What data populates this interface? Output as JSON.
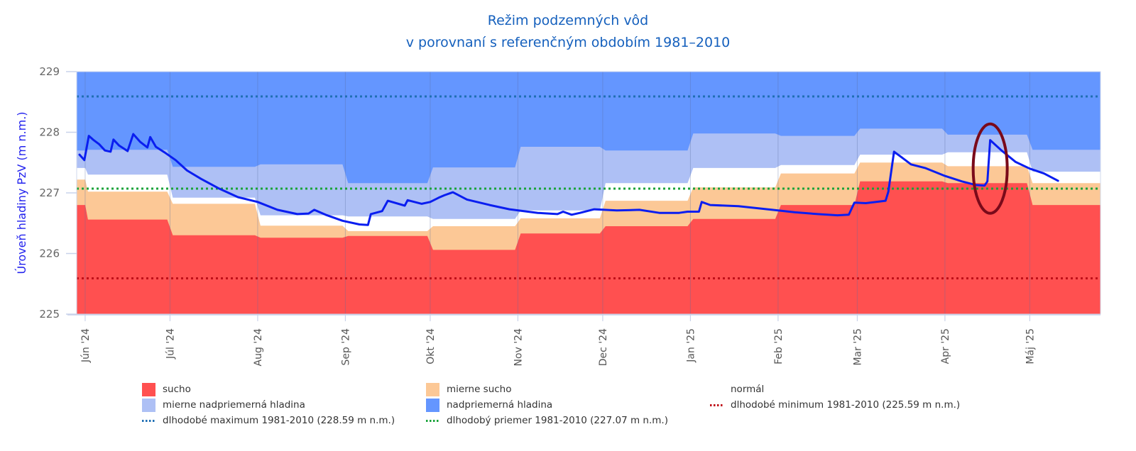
{
  "chart_data": {
    "type": "area",
    "title": [
      "Režim podzemných vôd",
      "v porovnaní s referenčným obdobím 1981–2010"
    ],
    "ylabel": "Úroveň hladiny PzV (m n.m.)",
    "xlabel": "",
    "ylim": [
      225,
      229
    ],
    "yticks": [
      225,
      226,
      227,
      228,
      229
    ],
    "x_unit": "days since 2024-06-01",
    "xlim": [
      -3,
      359
    ],
    "xticks": [
      {
        "day": 0,
        "label": "Jún '24"
      },
      {
        "day": 30,
        "label": "Júl '24"
      },
      {
        "day": 61,
        "label": "Aug '24"
      },
      {
        "day": 92,
        "label": "Sep '24"
      },
      {
        "day": 122,
        "label": "Okt '24"
      },
      {
        "day": 153,
        "label": "Nov '24"
      },
      {
        "day": 183,
        "label": "Dec '24"
      },
      {
        "day": 214,
        "label": "Jan '25"
      },
      {
        "day": 245,
        "label": "Feb '25"
      },
      {
        "day": 273,
        "label": "Mar '25"
      },
      {
        "day": 304,
        "label": "Apr '25"
      },
      {
        "day": 334,
        "label": "Máj '25"
      }
    ],
    "bands": {
      "note": "monthly band boundaries (upper limits) in m n.m.; segments start at given day",
      "segments": [
        {
          "start": -3,
          "end": 0,
          "sucho": 226.8,
          "mierne_sucho": 227.22,
          "normal": 227.41,
          "mierne_nadpriemerna": 227.7
        },
        {
          "start": 1,
          "end": 29,
          "sucho": 226.56,
          "mierne_sucho": 227.02,
          "normal": 227.3,
          "mierne_nadpriemerna": 227.71
        },
        {
          "start": 31,
          "end": 60,
          "sucho": 226.3,
          "mierne_sucho": 226.82,
          "normal": 226.92,
          "mierne_nadpriemerna": 227.43
        },
        {
          "start": 62,
          "end": 91,
          "sucho": 226.26,
          "mierne_sucho": 226.46,
          "normal": 226.63,
          "mierne_nadpriemerna": 227.47
        },
        {
          "start": 93,
          "end": 121,
          "sucho": 226.29,
          "mierne_sucho": 226.37,
          "normal": 226.61,
          "mierne_nadpriemerna": 227.16
        },
        {
          "start": 123,
          "end": 152,
          "sucho": 226.06,
          "mierne_sucho": 226.45,
          "normal": 226.57,
          "mierne_nadpriemerna": 227.42
        },
        {
          "start": 154,
          "end": 182,
          "sucho": 226.33,
          "mierne_sucho": 226.58,
          "normal": 226.71,
          "mierne_nadpriemerna": 227.76
        },
        {
          "start": 184,
          "end": 213,
          "sucho": 226.45,
          "mierne_sucho": 226.87,
          "normal": 227.16,
          "mierne_nadpriemerna": 227.7
        },
        {
          "start": 215,
          "end": 244,
          "sucho": 226.57,
          "mierne_sucho": 227.09,
          "normal": 227.41,
          "mierne_nadpriemerna": 227.98
        },
        {
          "start": 246,
          "end": 272,
          "sucho": 226.8,
          "mierne_sucho": 227.32,
          "normal": 227.46,
          "mierne_nadpriemerna": 227.94
        },
        {
          "start": 274,
          "end": 303,
          "sucho": 227.19,
          "mierne_sucho": 227.5,
          "normal": 227.63,
          "mierne_nadpriemerna": 228.06
        },
        {
          "start": 305,
          "end": 333,
          "sucho": 227.16,
          "mierne_sucho": 227.44,
          "normal": 227.67,
          "mierne_nadpriemerna": 227.96
        },
        {
          "start": 335,
          "end": 359,
          "sucho": 226.8,
          "mierne_sucho": 227.16,
          "normal": 227.35,
          "mierne_nadpriemerna": 227.71
        }
      ]
    },
    "series": [
      {
        "name": "Úroveň hladiny PzV",
        "color": "#0a1ef0",
        "points": [
          [
            -2,
            227.63
          ],
          [
            -0.3,
            227.54
          ],
          [
            1.3,
            227.94
          ],
          [
            3,
            227.87
          ],
          [
            5,
            227.8
          ],
          [
            7,
            227.7
          ],
          [
            9,
            227.68
          ],
          [
            10,
            227.88
          ],
          [
            12,
            227.78
          ],
          [
            15,
            227.69
          ],
          [
            17,
            227.97
          ],
          [
            19.5,
            227.84
          ],
          [
            22,
            227.75
          ],
          [
            23,
            227.92
          ],
          [
            25,
            227.76
          ],
          [
            28,
            227.67
          ],
          [
            32,
            227.54
          ],
          [
            36,
            227.37
          ],
          [
            41,
            227.23
          ],
          [
            47,
            227.08
          ],
          [
            54,
            226.93
          ],
          [
            61,
            226.85
          ],
          [
            68,
            226.72
          ],
          [
            75,
            226.65
          ],
          [
            79,
            226.66
          ],
          [
            81,
            226.72
          ],
          [
            85,
            226.64
          ],
          [
            91,
            226.54
          ],
          [
            97,
            226.48
          ],
          [
            100,
            226.47
          ],
          [
            101,
            226.65
          ],
          [
            105,
            226.7
          ],
          [
            107,
            226.87
          ],
          [
            113,
            226.79
          ],
          [
            114,
            226.88
          ],
          [
            119,
            226.82
          ],
          [
            122,
            226.85
          ],
          [
            125,
            226.92
          ],
          [
            127,
            226.96
          ],
          [
            130,
            227.01
          ],
          [
            135,
            226.89
          ],
          [
            143,
            226.8
          ],
          [
            150,
            226.73
          ],
          [
            160,
            226.67
          ],
          [
            167,
            226.65
          ],
          [
            169,
            226.69
          ],
          [
            172,
            226.64
          ],
          [
            175,
            226.67
          ],
          [
            180,
            226.73
          ],
          [
            188,
            226.71
          ],
          [
            196,
            226.72
          ],
          [
            203,
            226.67
          ],
          [
            210,
            226.67
          ],
          [
            213,
            226.69
          ],
          [
            217,
            226.69
          ],
          [
            218,
            226.85
          ],
          [
            221,
            226.8
          ],
          [
            231,
            226.78
          ],
          [
            243,
            226.72
          ],
          [
            251,
            226.68
          ],
          [
            259,
            226.65
          ],
          [
            266,
            226.63
          ],
          [
            270,
            226.64
          ],
          [
            272,
            226.84
          ],
          [
            276,
            226.83
          ],
          [
            283,
            226.87
          ],
          [
            284,
            227.02
          ],
          [
            286,
            227.68
          ],
          [
            288,
            227.61
          ],
          [
            292,
            227.47
          ],
          [
            297,
            227.41
          ],
          [
            304,
            227.28
          ],
          [
            310,
            227.19
          ],
          [
            315,
            227.13
          ],
          [
            318,
            227.12
          ],
          [
            319,
            227.19
          ],
          [
            320,
            227.87
          ],
          [
            324,
            227.7
          ],
          [
            329,
            227.51
          ],
          [
            334,
            227.4
          ],
          [
            339,
            227.32
          ],
          [
            344,
            227.2
          ]
        ]
      }
    ],
    "reference_lines": [
      {
        "name": "dlhodobé maximum 1981-2010 (228.59 m n.m.)",
        "value": 228.59,
        "color": "#1f6fb4"
      },
      {
        "name": "dlhodobý priemer 1981-2010 (227.07 m n.m.)",
        "value": 227.07,
        "color": "#1aa33a"
      },
      {
        "name": "dlhodobé minimum 1981-2010 (225.59 m n.m.)",
        "value": 225.59,
        "color": "#c0101a"
      }
    ],
    "annotation": {
      "type": "ellipse",
      "center_day": 320,
      "center_value": 227.4,
      "color": "#7a0a1a"
    },
    "band_colors": {
      "sucho": "#ff5050",
      "mierne_sucho": "#fcc896",
      "normal": "#ffffff",
      "mierne_nadpriemerna": "#aec0f5",
      "nadpriemerna": "#6496ff"
    },
    "legend": {
      "placement": "bottom",
      "items": [
        {
          "label": "sucho",
          "kind": "swatch",
          "color": "#ff5050"
        },
        {
          "label": "mierne sucho",
          "kind": "swatch",
          "color": "#fcc896"
        },
        {
          "label": "normál",
          "kind": "swatch",
          "color": "#ffffff"
        },
        {
          "label": "mierne nadpriemerná hladina",
          "kind": "swatch",
          "color": "#aec0f5"
        },
        {
          "label": "nadpriemerná hladina",
          "kind": "swatch",
          "color": "#6496ff"
        },
        {
          "label": "dlhodobé minimum 1981-2010 (225.59 m n.m.)",
          "kind": "dots",
          "color": "#c0101a"
        },
        {
          "label": "dlhodobé maximum 1981-2010 (228.59 m n.m.)",
          "kind": "dots",
          "color": "#1f6fb4"
        },
        {
          "label": "dlhodobý priemer 1981-2010 (227.07 m n.m.)",
          "kind": "dots",
          "color": "#1aa33a"
        }
      ]
    }
  }
}
